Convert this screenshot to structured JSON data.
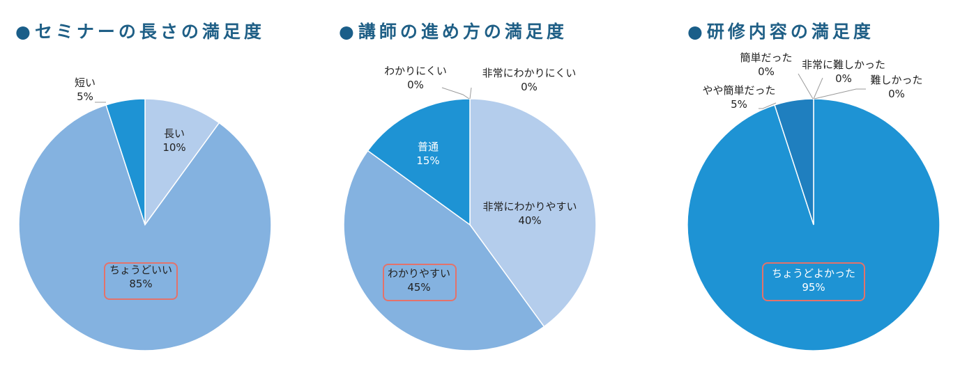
{
  "chart_data": [
    {
      "type": "pie",
      "title": "セミナーの長さの満足度",
      "slices": [
        {
          "name": "長い",
          "value": 10,
          "pct": "10%",
          "color": "#b4cdec",
          "text": "dark"
        },
        {
          "name": "ちょうどいい",
          "value": 85,
          "pct": "85%",
          "color": "#84b2e0",
          "text": "dark",
          "highlight": true
        },
        {
          "name": "短い",
          "value": 5,
          "pct": "5%",
          "color": "#1e93d4",
          "text": "dark"
        }
      ]
    },
    {
      "type": "pie",
      "title": "講師の進め方の満足度",
      "slices": [
        {
          "name": "非常にわかりやすい",
          "value": 40,
          "pct": "40%",
          "color": "#b4cdec",
          "text": "dark"
        },
        {
          "name": "わかりやすい",
          "value": 45,
          "pct": "45%",
          "color": "#84b2e0",
          "text": "dark",
          "highlight": true
        },
        {
          "name": "普通",
          "value": 15,
          "pct": "15%",
          "color": "#1e93d4",
          "text": "light"
        },
        {
          "name": "わかりにくい",
          "value": 0,
          "pct": "0%",
          "color": "#1a75b0",
          "text": "dark"
        },
        {
          "name": "非常にわかりにくい",
          "value": 0,
          "pct": "0%",
          "color": "#1a5e89",
          "text": "dark"
        }
      ]
    },
    {
      "type": "pie",
      "title": "研修内容の満足度",
      "slices": [
        {
          "name": "難しかった",
          "value": 0,
          "pct": "0%",
          "color": "#b4cdec",
          "text": "dark"
        },
        {
          "name": "ちょうどよかった",
          "value": 95,
          "pct": "95%",
          "color": "#1e93d4",
          "text": "light",
          "highlight": true
        },
        {
          "name": "やや簡単だった",
          "value": 5,
          "pct": "5%",
          "color": "#1f7fbf",
          "text": "dark"
        },
        {
          "name": "簡単だった",
          "value": 0,
          "pct": "0%",
          "color": "#1a75b0",
          "text": "dark"
        },
        {
          "name": "非常に難しかった",
          "value": 0,
          "pct": "0%",
          "color": "#1a5e89",
          "text": "dark"
        }
      ]
    }
  ]
}
